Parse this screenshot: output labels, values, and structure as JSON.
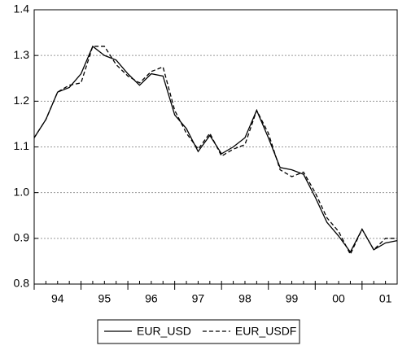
{
  "chart_data": {
    "type": "line",
    "categories": [
      "94",
      null,
      null,
      null,
      "95",
      null,
      null,
      null,
      "96",
      null,
      null,
      null,
      "97",
      null,
      null,
      null,
      "98",
      null,
      null,
      null,
      "99",
      null,
      null,
      null,
      "00",
      null,
      null,
      null,
      "01",
      null,
      null,
      null
    ],
    "series": [
      {
        "name": "EUR_USD",
        "color": "#000000",
        "style": "solid",
        "values": [
          1.12,
          1.16,
          1.22,
          1.23,
          1.26,
          1.32,
          1.3,
          1.29,
          1.26,
          1.235,
          1.26,
          1.255,
          1.17,
          1.14,
          1.09,
          1.125,
          1.085,
          1.1,
          1.12,
          1.18,
          1.12,
          1.055,
          1.05,
          1.04,
          0.99,
          0.935,
          0.905,
          0.87,
          0.92,
          0.875,
          0.89,
          0.895
        ]
      },
      {
        "name": "EUR_USDF",
        "color": "#000000",
        "style": "dashed",
        "values": [
          1.12,
          1.16,
          1.22,
          1.235,
          1.24,
          1.32,
          1.32,
          1.28,
          1.255,
          1.24,
          1.265,
          1.275,
          1.18,
          1.13,
          1.095,
          1.13,
          1.08,
          1.095,
          1.105,
          1.18,
          1.13,
          1.05,
          1.035,
          1.045,
          1.0,
          0.945,
          0.915,
          0.865,
          0.92,
          0.875,
          0.9,
          0.9
        ]
      }
    ],
    "ylim": [
      0.8,
      1.4
    ],
    "yticks": [
      0.8,
      0.9,
      {
        "value": 1,
        "label": "1.0"
      },
      1.1,
      1.2,
      1.3,
      1.4
    ],
    "grid": true
  }
}
